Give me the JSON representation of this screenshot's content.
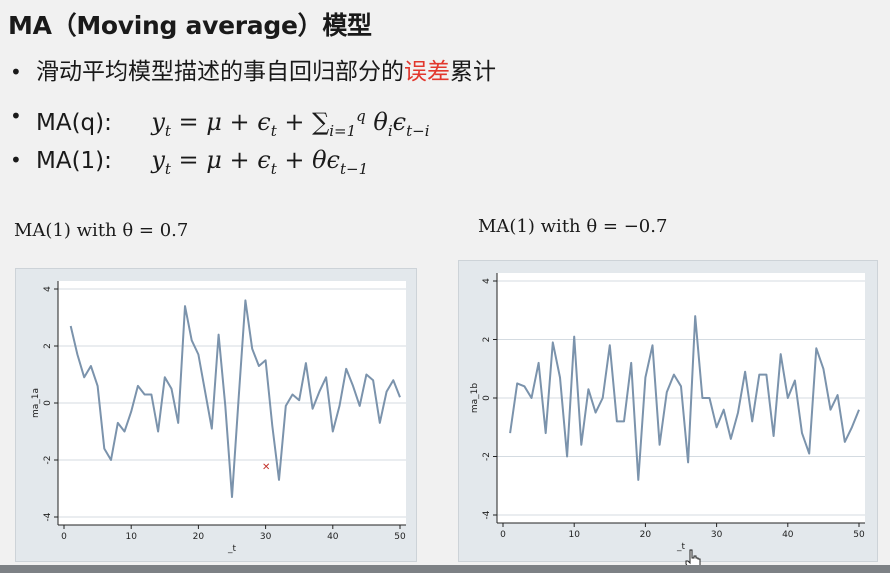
{
  "slide": {
    "title": "MA（Moving average）模型",
    "bullets": [
      {
        "text_before": "滑动平均模型描述的事自回归部分的",
        "highlight": "误差",
        "text_after": "累计"
      },
      {
        "label": "MA(q):",
        "formula": "y_t = μ + ε_t + Σ_{i=1}^{q} θ_i ε_{t−i}"
      },
      {
        "label": "MA(1):",
        "formula": "y_t = μ + ε_t + θ ε_{t−1}"
      }
    ],
    "highlight_color": "#e2372d"
  },
  "chart_data": [
    {
      "type": "line",
      "title": "MA(1) with θ = 0.7",
      "xlabel": "_t",
      "ylabel": "ma_1a",
      "xlim": [
        0,
        50
      ],
      "ylim": [
        -4,
        4
      ],
      "xticks": [
        0,
        10,
        20,
        30,
        40,
        50
      ],
      "yticks": [
        -4,
        -2,
        0,
        2,
        4
      ],
      "grid": true,
      "series": [
        {
          "color": "#7b93ac",
          "x": [
            1,
            2,
            3,
            4,
            5,
            6,
            7,
            8,
            9,
            10,
            11,
            12,
            13,
            14,
            15,
            16,
            17,
            18,
            19,
            20,
            21,
            22,
            23,
            24,
            25,
            26,
            27,
            28,
            29,
            30,
            31,
            32,
            33,
            34,
            35,
            36,
            37,
            38,
            39,
            40,
            41,
            42,
            43,
            44,
            45,
            46,
            47,
            48,
            49,
            50
          ],
          "values": [
            2.7,
            1.7,
            0.9,
            1.3,
            0.6,
            -1.6,
            -2.0,
            -0.7,
            -1.0,
            -0.3,
            0.6,
            0.3,
            0.3,
            -1.0,
            0.9,
            0.5,
            -0.7,
            3.4,
            2.2,
            1.7,
            0.4,
            -0.9,
            2.4,
            -0.1,
            -3.3,
            0.2,
            3.6,
            1.9,
            1.3,
            1.5,
            -0.8,
            -2.7,
            -0.1,
            0.3,
            0.1,
            1.4,
            -0.2,
            0.4,
            0.9,
            -1.0,
            -0.1,
            1.2,
            0.6,
            -0.1,
            1.0,
            0.8,
            -0.7,
            0.4,
            0.8,
            0.2
          ]
        }
      ]
    },
    {
      "type": "line",
      "title": "MA(1) with θ = −0.7",
      "xlabel": "_t",
      "ylabel": "ma_1b",
      "xlim": [
        0,
        50
      ],
      "ylim": [
        -4,
        4
      ],
      "xticks": [
        0,
        10,
        20,
        30,
        40,
        50
      ],
      "yticks": [
        -4,
        -2,
        0,
        2,
        4
      ],
      "grid": true,
      "series": [
        {
          "color": "#7b93ac",
          "x": [
            1,
            2,
            3,
            4,
            5,
            6,
            7,
            8,
            9,
            10,
            11,
            12,
            13,
            14,
            15,
            16,
            17,
            18,
            19,
            20,
            21,
            22,
            23,
            24,
            25,
            26,
            27,
            28,
            29,
            30,
            31,
            32,
            33,
            34,
            35,
            36,
            37,
            38,
            39,
            40,
            41,
            42,
            43,
            44,
            45,
            46,
            47,
            48,
            49,
            50
          ],
          "values": [
            -1.2,
            0.5,
            0.4,
            0.0,
            1.2,
            -1.2,
            1.9,
            0.7,
            -2.0,
            2.1,
            -1.6,
            0.3,
            -0.5,
            0.0,
            1.8,
            -0.8,
            -0.8,
            1.2,
            -2.8,
            0.7,
            1.8,
            -1.6,
            0.2,
            0.8,
            0.4,
            -2.2,
            2.8,
            0.0,
            0.0,
            -1.0,
            -0.4,
            -1.4,
            -0.5,
            0.9,
            -0.8,
            0.8,
            0.8,
            -1.3,
            1.5,
            0.0,
            0.6,
            -1.2,
            -1.9,
            1.7,
            1.0,
            -0.4,
            0.1,
            -1.5,
            -1.0,
            -0.4
          ]
        }
      ]
    }
  ]
}
